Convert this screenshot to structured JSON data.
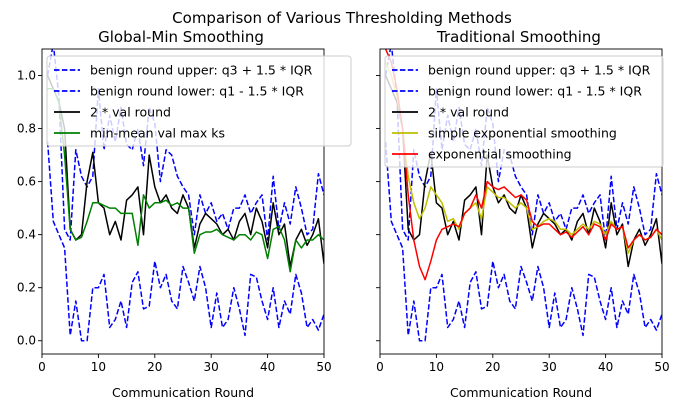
{
  "figure": {
    "suptitle": "Comparison of Various Thresholding Methods"
  },
  "chart_data": [
    {
      "type": "line",
      "title": "Global-Min Smoothing",
      "xlabel": "Communication Round",
      "ylabel": "",
      "xlim": [
        0,
        50
      ],
      "ylim": [
        -0.05,
        1.1
      ],
      "xticks": [
        "0",
        "10",
        "20",
        "30",
        "40",
        "50"
      ],
      "yticks": [
        "0.0",
        "0.2",
        "0.4",
        "0.6",
        "0.8",
        "1.0"
      ],
      "grid": false,
      "legend_position": "upper-right",
      "x": [
        1,
        2,
        3,
        4,
        5,
        6,
        7,
        8,
        9,
        10,
        11,
        12,
        13,
        14,
        15,
        16,
        17,
        18,
        19,
        20,
        21,
        22,
        23,
        24,
        25,
        26,
        27,
        28,
        29,
        30,
        31,
        32,
        33,
        34,
        35,
        36,
        37,
        38,
        39,
        40,
        41,
        42,
        43,
        44,
        45,
        46,
        47,
        48,
        49,
        50
      ],
      "series": [
        {
          "name": "benign round upper: q3 + 1.5 * IQR",
          "color": "#0000ff",
          "dash": true,
          "values": [
            1.0,
            1.12,
            0.92,
            0.42,
            0.38,
            0.72,
            0.62,
            0.58,
            0.62,
            0.95,
            0.72,
            0.85,
            0.75,
            0.88,
            0.74,
            0.72,
            0.8,
            0.66,
            0.88,
            0.82,
            0.6,
            0.72,
            0.7,
            0.62,
            0.58,
            0.55,
            0.4,
            0.55,
            0.48,
            0.52,
            0.45,
            0.48,
            0.42,
            0.5,
            0.5,
            0.55,
            0.48,
            0.52,
            0.55,
            0.38,
            0.62,
            0.42,
            0.52,
            0.44,
            0.58,
            0.5,
            0.4,
            0.42,
            0.63,
            0.55
          ]
        },
        {
          "name": "benign round lower: q1 - 1.5 * IQR",
          "color": "#0000ff",
          "dash": true,
          "values": [
            0.75,
            0.45,
            0.4,
            0.35,
            0.02,
            0.15,
            0.0,
            0.0,
            0.2,
            0.2,
            0.25,
            0.05,
            0.08,
            0.15,
            0.05,
            0.22,
            0.26,
            0.12,
            0.13,
            0.3,
            0.2,
            0.25,
            0.15,
            0.12,
            0.28,
            0.22,
            0.15,
            0.28,
            0.2,
            0.05,
            0.18,
            0.05,
            0.08,
            0.2,
            0.12,
            0.02,
            0.25,
            0.24,
            0.15,
            0.08,
            0.2,
            0.05,
            0.15,
            0.1,
            0.25,
            0.18,
            0.05,
            0.08,
            0.04,
            0.1
          ]
        },
        {
          "name": "2 * val round",
          "color": "#000000",
          "dash": false,
          "values": [
            1.0,
            0.95,
            0.9,
            0.8,
            0.42,
            0.38,
            0.4,
            0.6,
            0.71,
            0.52,
            0.5,
            0.4,
            0.45,
            0.38,
            0.53,
            0.55,
            0.58,
            0.4,
            0.7,
            0.58,
            0.52,
            0.55,
            0.5,
            0.48,
            0.55,
            0.5,
            0.35,
            0.44,
            0.48,
            0.46,
            0.44,
            0.4,
            0.42,
            0.38,
            0.45,
            0.48,
            0.4,
            0.5,
            0.45,
            0.35,
            0.52,
            0.4,
            0.44,
            0.28,
            0.38,
            0.42,
            0.36,
            0.4,
            0.46,
            0.29
          ]
        },
        {
          "name": "min-mean val max ks",
          "color": "#008000",
          "dash": false,
          "values": [
            0.95,
            0.95,
            0.9,
            0.7,
            0.42,
            0.38,
            0.39,
            0.45,
            0.52,
            0.52,
            0.51,
            0.5,
            0.5,
            0.48,
            0.48,
            0.48,
            0.36,
            0.55,
            0.5,
            0.52,
            0.52,
            0.53,
            0.51,
            0.52,
            0.5,
            0.5,
            0.33,
            0.4,
            0.41,
            0.41,
            0.42,
            0.4,
            0.39,
            0.38,
            0.4,
            0.4,
            0.38,
            0.41,
            0.4,
            0.31,
            0.42,
            0.43,
            0.38,
            0.26,
            0.38,
            0.35,
            0.38,
            0.38,
            0.4,
            0.38
          ]
        }
      ]
    },
    {
      "type": "line",
      "title": "Traditional Smoothing",
      "xlabel": "Communication Round",
      "ylabel": "",
      "xlim": [
        0,
        50
      ],
      "ylim": [
        -0.05,
        1.1
      ],
      "xticks": [
        "0",
        "10",
        "20",
        "30",
        "40",
        "50"
      ],
      "yticks": [],
      "grid": false,
      "legend_position": "upper-right",
      "x": [
        1,
        2,
        3,
        4,
        5,
        6,
        7,
        8,
        9,
        10,
        11,
        12,
        13,
        14,
        15,
        16,
        17,
        18,
        19,
        20,
        21,
        22,
        23,
        24,
        25,
        26,
        27,
        28,
        29,
        30,
        31,
        32,
        33,
        34,
        35,
        36,
        37,
        38,
        39,
        40,
        41,
        42,
        43,
        44,
        45,
        46,
        47,
        48,
        49,
        50
      ],
      "series": [
        {
          "name": "benign round upper: q3 + 1.5 * IQR",
          "color": "#0000ff",
          "dash": true,
          "values": [
            1.0,
            1.12,
            0.92,
            0.42,
            0.38,
            0.72,
            0.62,
            0.58,
            0.62,
            0.95,
            0.72,
            0.85,
            0.75,
            0.88,
            0.74,
            0.72,
            0.8,
            0.66,
            0.88,
            0.82,
            0.6,
            0.72,
            0.7,
            0.62,
            0.58,
            0.55,
            0.4,
            0.55,
            0.48,
            0.52,
            0.45,
            0.48,
            0.42,
            0.5,
            0.5,
            0.55,
            0.48,
            0.52,
            0.55,
            0.38,
            0.62,
            0.42,
            0.52,
            0.44,
            0.58,
            0.5,
            0.4,
            0.42,
            0.63,
            0.55
          ]
        },
        {
          "name": "benign round lower: q1 - 1.5 * IQR",
          "color": "#0000ff",
          "dash": true,
          "values": [
            0.75,
            0.45,
            0.4,
            0.35,
            0.02,
            0.15,
            0.0,
            0.0,
            0.2,
            0.2,
            0.25,
            0.05,
            0.08,
            0.15,
            0.05,
            0.22,
            0.26,
            0.12,
            0.13,
            0.3,
            0.2,
            0.25,
            0.15,
            0.12,
            0.28,
            0.22,
            0.15,
            0.28,
            0.2,
            0.05,
            0.18,
            0.05,
            0.08,
            0.2,
            0.12,
            0.02,
            0.25,
            0.24,
            0.15,
            0.08,
            0.2,
            0.05,
            0.15,
            0.1,
            0.25,
            0.18,
            0.05,
            0.08,
            0.04,
            0.1
          ]
        },
        {
          "name": "2 * val round",
          "color": "#000000",
          "dash": false,
          "values": [
            1.0,
            0.95,
            0.9,
            0.8,
            0.42,
            0.38,
            0.4,
            0.6,
            0.71,
            0.52,
            0.5,
            0.4,
            0.45,
            0.38,
            0.53,
            0.55,
            0.58,
            0.4,
            0.7,
            0.58,
            0.52,
            0.55,
            0.5,
            0.48,
            0.55,
            0.5,
            0.35,
            0.44,
            0.48,
            0.46,
            0.44,
            0.4,
            0.42,
            0.38,
            0.45,
            0.48,
            0.4,
            0.5,
            0.45,
            0.35,
            0.52,
            0.4,
            0.44,
            0.28,
            0.38,
            0.42,
            0.36,
            0.4,
            0.46,
            0.29
          ]
        },
        {
          "name": "simple exponential smoothing",
          "color": "#bfbf00",
          "dash": false,
          "values": [
            1.05,
            1.0,
            0.92,
            0.8,
            0.62,
            0.52,
            0.46,
            0.5,
            0.58,
            0.55,
            0.52,
            0.45,
            0.46,
            0.42,
            0.48,
            0.5,
            0.52,
            0.46,
            0.58,
            0.56,
            0.54,
            0.54,
            0.52,
            0.5,
            0.52,
            0.5,
            0.42,
            0.43,
            0.45,
            0.46,
            0.45,
            0.42,
            0.42,
            0.4,
            0.42,
            0.44,
            0.42,
            0.45,
            0.44,
            0.4,
            0.45,
            0.42,
            0.43,
            0.33,
            0.38,
            0.4,
            0.38,
            0.39,
            0.42,
            0.38
          ]
        },
        {
          "name": "exponential smoothing",
          "color": "#ff0000",
          "dash": false,
          "values": [
            1.1,
            1.05,
            0.95,
            0.8,
            0.55,
            0.38,
            0.28,
            0.23,
            0.3,
            0.38,
            0.42,
            0.43,
            0.44,
            0.43,
            0.48,
            0.5,
            0.55,
            0.5,
            0.6,
            0.58,
            0.57,
            0.58,
            0.56,
            0.54,
            0.55,
            0.53,
            0.45,
            0.43,
            0.44,
            0.44,
            0.42,
            0.4,
            0.41,
            0.39,
            0.41,
            0.43,
            0.4,
            0.44,
            0.43,
            0.38,
            0.44,
            0.42,
            0.43,
            0.35,
            0.38,
            0.4,
            0.38,
            0.39,
            0.42,
            0.4
          ]
        }
      ]
    }
  ]
}
